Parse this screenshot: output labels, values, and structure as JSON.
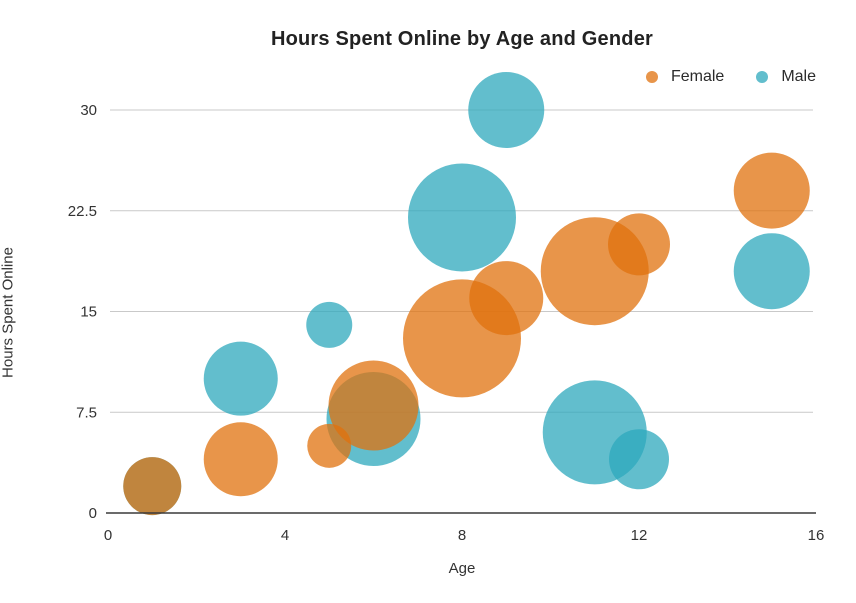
{
  "chart_data": {
    "type": "scatter",
    "subtype": "bubble",
    "title": "Hours Spent Online by Age and Gender",
    "xlabel": "Age",
    "ylabel": "Hours Spent Online",
    "xlim": [
      0,
      16
    ],
    "ylim": [
      0,
      30
    ],
    "x_ticks": [
      0,
      4,
      8,
      12,
      16
    ],
    "y_ticks": [
      0,
      7.5,
      15,
      22.5,
      30
    ],
    "grid": "horizontal gridlines only",
    "legend": {
      "position": "top-right",
      "entries": [
        {
          "label": "Female",
          "color": "#E8954A"
        },
        {
          "label": "Male",
          "color": "#62BECD"
        }
      ]
    },
    "series": [
      {
        "name": "Female",
        "fill": "rgba(224,114,14,0.75)",
        "solid_color": "#E8954A",
        "points": [
          {
            "age": 1,
            "hours": 2,
            "r": 29
          },
          {
            "age": 3,
            "hours": 4,
            "r": 37
          },
          {
            "age": 5,
            "hours": 5,
            "r": 22
          },
          {
            "age": 6,
            "hours": 8,
            "r": 45
          },
          {
            "age": 8,
            "hours": 13,
            "r": 59
          },
          {
            "age": 9,
            "hours": 16,
            "r": 37
          },
          {
            "age": 11,
            "hours": 18,
            "r": 54
          },
          {
            "age": 12,
            "hours": 20,
            "r": 31
          },
          {
            "age": 15,
            "hours": 24,
            "r": 38
          }
        ]
      },
      {
        "name": "Male",
        "fill": "rgba(46,168,188,0.75)",
        "solid_color": "#62BECD",
        "points": [
          {
            "age": 1,
            "hours": 2,
            "r": 29
          },
          {
            "age": 3,
            "hours": 10,
            "r": 37
          },
          {
            "age": 5,
            "hours": 14,
            "r": 23
          },
          {
            "age": 6,
            "hours": 7,
            "r": 47
          },
          {
            "age": 8,
            "hours": 22,
            "r": 54
          },
          {
            "age": 9,
            "hours": 30,
            "r": 38
          },
          {
            "age": 11,
            "hours": 6,
            "r": 52
          },
          {
            "age": 12,
            "hours": 4,
            "r": 30
          },
          {
            "age": 15,
            "hours": 18,
            "r": 38
          }
        ]
      }
    ],
    "style": {
      "gridline_color": "#c9c9c9",
      "axis_line_color": "#3a3a3a",
      "tick_label_color": "#333333",
      "title_color": "#222222",
      "background": "#ffffff"
    }
  }
}
